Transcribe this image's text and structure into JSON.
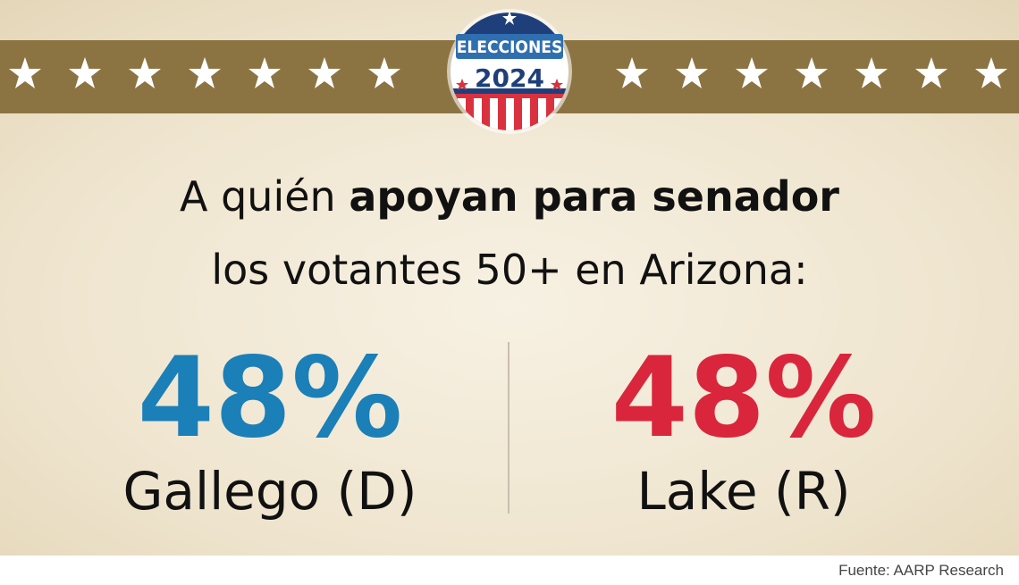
{
  "badge": {
    "label": "ELECCIONES",
    "year": "2024"
  },
  "heading": {
    "line1_regular": "A quién",
    "line1_bold": "apoyan para senador",
    "line2": "los votantes 50+ en Arizona:"
  },
  "candidates": [
    {
      "percent": "48%",
      "name": "Gallego (D)"
    },
    {
      "percent": "48%",
      "name": "Lake (R)"
    }
  ],
  "source": "Fuente: AARP Research"
}
